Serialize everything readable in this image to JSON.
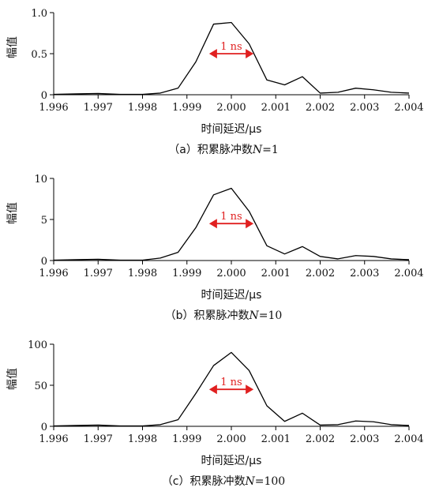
{
  "chart_data": [
    {
      "type": "line",
      "xlabel": "时间延迟/μs",
      "ylabel": "幅值",
      "xlim": [
        1.996,
        2.004
      ],
      "ylim": [
        0,
        1.0
      ],
      "xticks": [
        "1.996",
        "1.997",
        "1.998",
        "1.999",
        "2.000",
        "2.001",
        "2.002",
        "2.003",
        "2.004"
      ],
      "yticks": [
        "0",
        "0.5",
        "1.0"
      ],
      "caption": "（a）积累脉冲数N=1",
      "caption_parts": {
        "prefix": "（a）积累脉冲数",
        "var": "N",
        "suffix": "=1"
      },
      "annotation": {
        "text": "1 ns",
        "x_start": 1.9995,
        "x_end": 2.0005,
        "y": 0.5,
        "color": "#e02020"
      },
      "series": [
        {
          "x": [
            1.996,
            1.9965,
            1.997,
            1.9975,
            1.998,
            1.9984,
            1.9988,
            1.9992,
            1.9996,
            2.0,
            2.0004,
            2.0008,
            2.0012,
            2.0016,
            2.002,
            2.0024,
            2.0028,
            2.0032,
            2.0036,
            2.004
          ],
          "y": [
            0.005,
            0.01,
            0.015,
            0.005,
            0.005,
            0.02,
            0.08,
            0.4,
            0.86,
            0.88,
            0.62,
            0.18,
            0.12,
            0.22,
            0.02,
            0.03,
            0.08,
            0.06,
            0.03,
            0.02
          ]
        }
      ]
    },
    {
      "type": "line",
      "xlabel": "时间延迟/μs",
      "ylabel": "幅值",
      "xlim": [
        1.996,
        2.004
      ],
      "ylim": [
        0,
        10
      ],
      "xticks": [
        "1.996",
        "1.997",
        "1.998",
        "1.999",
        "2.000",
        "2.001",
        "2.002",
        "2.003",
        "2.004"
      ],
      "yticks": [
        "0",
        "5",
        "10"
      ],
      "caption": "（b）积累脉冲数N=10",
      "caption_parts": {
        "prefix": "（b）积累脉冲数",
        "var": "N",
        "suffix": "=10"
      },
      "annotation": {
        "text": "1 ns",
        "x_start": 1.9995,
        "x_end": 2.0005,
        "y": 4.5,
        "color": "#e02020"
      },
      "series": [
        {
          "x": [
            1.996,
            1.9965,
            1.997,
            1.9975,
            1.998,
            1.9984,
            1.9988,
            1.9992,
            1.9996,
            2.0,
            2.0004,
            2.0008,
            2.0012,
            2.0016,
            2.002,
            2.0024,
            2.0028,
            2.0032,
            2.0036,
            2.004
          ],
          "y": [
            0.05,
            0.1,
            0.15,
            0.05,
            0.05,
            0.3,
            1.0,
            4.0,
            8.0,
            8.8,
            6.0,
            1.8,
            0.8,
            1.7,
            0.5,
            0.2,
            0.6,
            0.5,
            0.2,
            0.1
          ]
        }
      ]
    },
    {
      "type": "line",
      "xlabel": "时间延迟/μs",
      "ylabel": "幅值",
      "xlim": [
        1.996,
        2.004
      ],
      "ylim": [
        0,
        100
      ],
      "xticks": [
        "1.996",
        "1.997",
        "1.998",
        "1.999",
        "2.000",
        "2.001",
        "2.002",
        "2.003",
        "2.004"
      ],
      "yticks": [
        "0",
        "50",
        "100"
      ],
      "caption": "（c）积累脉冲数N=100",
      "caption_parts": {
        "prefix": "（c）积累脉冲数",
        "var": "N",
        "suffix": "=100"
      },
      "annotation": {
        "text": "1 ns",
        "x_start": 1.9995,
        "x_end": 2.0005,
        "y": 45,
        "color": "#e02020"
      },
      "series": [
        {
          "x": [
            1.996,
            1.9965,
            1.997,
            1.9975,
            1.998,
            1.9984,
            1.9988,
            1.9992,
            1.9996,
            2.0,
            2.0004,
            2.0008,
            2.0012,
            2.0016,
            2.002,
            2.0024,
            2.0028,
            2.0032,
            2.0036,
            2.004
          ],
          "y": [
            0.5,
            1.0,
            1.5,
            0.5,
            0.5,
            2.0,
            8.0,
            40.0,
            74.0,
            90.0,
            68.0,
            25.0,
            6.0,
            16.0,
            1.5,
            2.0,
            6.5,
            5.5,
            2.0,
            1.0
          ]
        }
      ]
    }
  ]
}
